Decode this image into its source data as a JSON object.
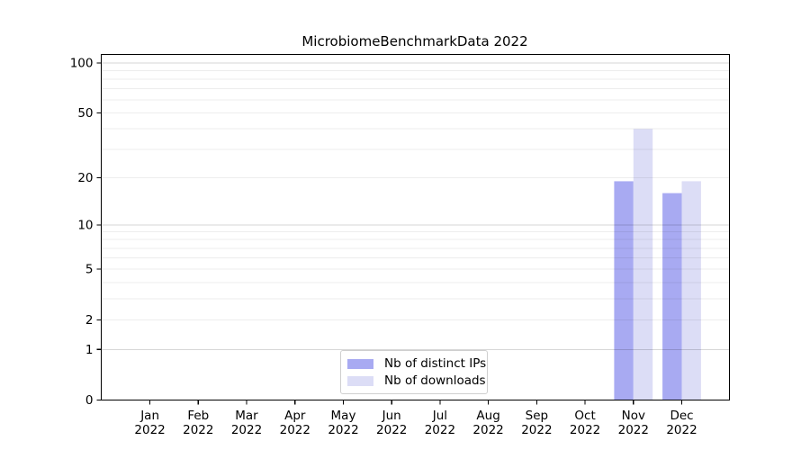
{
  "title": "MicrobiomeBenchmarkData 2022",
  "legend": {
    "items": [
      {
        "label": "Nb of distinct IPs",
        "color": "#a8aaf2"
      },
      {
        "label": "Nb of downloads",
        "color": "#dcddf6"
      }
    ]
  },
  "chart_data": {
    "type": "bar",
    "title": "MicrobiomeBenchmarkData 2022",
    "categories": [
      "Jan 2022",
      "Feb 2022",
      "Mar 2022",
      "Apr 2022",
      "May 2022",
      "Jun 2022",
      "Jul 2022",
      "Aug 2022",
      "Sep 2022",
      "Oct 2022",
      "Nov 2022",
      "Dec 2022"
    ],
    "series": [
      {
        "name": "Nb of distinct IPs",
        "color": "#a8aaf2",
        "values": [
          0,
          0,
          0,
          0,
          0,
          0,
          0,
          0,
          0,
          0,
          19,
          16
        ]
      },
      {
        "name": "Nb of downloads",
        "color": "#dcddf6",
        "values": [
          0,
          0,
          0,
          0,
          0,
          0,
          0,
          0,
          0,
          0,
          40,
          19
        ]
      }
    ],
    "yscale": "log1p",
    "yticks": [
      0,
      1,
      2,
      5,
      10,
      20,
      50,
      100
    ],
    "ylim": [
      0,
      114
    ],
    "grid": "major-and-minor, horizontal only",
    "legend_position": "lower center"
  }
}
